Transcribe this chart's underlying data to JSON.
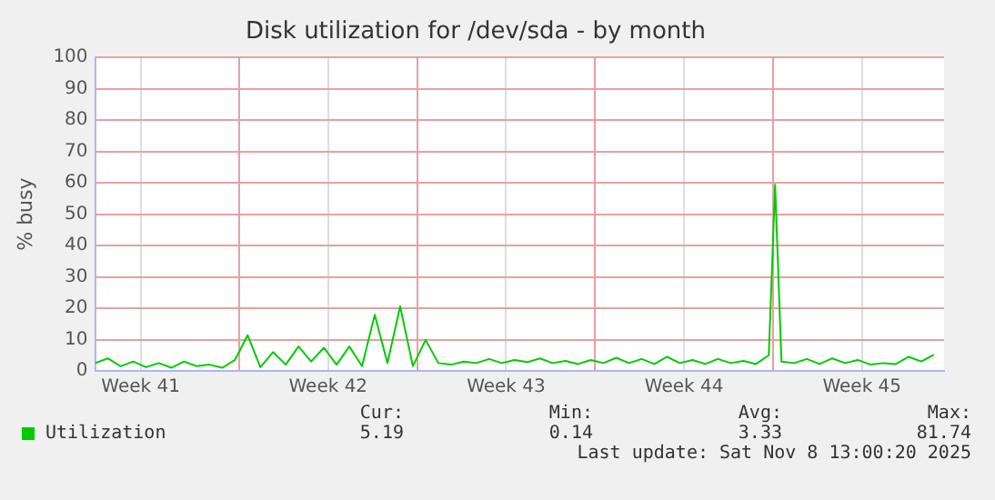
{
  "chart_data": {
    "type": "line",
    "title": "Disk utilization for /dev/sda - by month",
    "ylabel": "% busy",
    "x": [
      "2025-10-07T08:00",
      "2025-10-07T20:00",
      "2025-10-08T08:00",
      "2025-10-08T20:00",
      "2025-10-09T08:00",
      "2025-10-09T20:00",
      "2025-10-10T08:00",
      "2025-10-10T20:00",
      "2025-10-11T08:00",
      "2025-10-11T20:00",
      "2025-10-12T08:00",
      "2025-10-12T20:00",
      "2025-10-13T08:00",
      "2025-10-13T20:00",
      "2025-10-14T08:00",
      "2025-10-14T20:00",
      "2025-10-15T08:00",
      "2025-10-15T20:00",
      "2025-10-16T08:00",
      "2025-10-16T20:00",
      "2025-10-17T08:00",
      "2025-10-17T20:00",
      "2025-10-18T08:00",
      "2025-10-18T20:00",
      "2025-10-19T08:00",
      "2025-10-19T20:00",
      "2025-10-20T08:00",
      "2025-10-20T20:00",
      "2025-10-21T08:00",
      "2025-10-21T20:00",
      "2025-10-22T08:00",
      "2025-10-22T20:00",
      "2025-10-23T08:00",
      "2025-10-23T20:00",
      "2025-10-24T08:00",
      "2025-10-24T20:00",
      "2025-10-25T08:00",
      "2025-10-25T20:00",
      "2025-10-26T08:00",
      "2025-10-26T20:00",
      "2025-10-27T08:00",
      "2025-10-27T20:00",
      "2025-10-28T08:00",
      "2025-10-28T20:00",
      "2025-10-29T08:00",
      "2025-10-29T20:00",
      "2025-10-30T08:00",
      "2025-10-30T20:00",
      "2025-10-31T08:00",
      "2025-10-31T20:00",
      "2025-11-01T08:00",
      "2025-11-01T20:00",
      "2025-11-02T08:00",
      "2025-11-02T20:00",
      "2025-11-03T02:00",
      "2025-11-03T08:00",
      "2025-11-03T20:00",
      "2025-11-04T08:00",
      "2025-11-04T20:00",
      "2025-11-05T08:00",
      "2025-11-05T20:00",
      "2025-11-06T08:00",
      "2025-11-06T20:00",
      "2025-11-07T08:00",
      "2025-11-07T20:00",
      "2025-11-08T08:00",
      "2025-11-08T20:00",
      "2025-11-09T08:00"
    ],
    "series": [
      {
        "name": "Utilization",
        "color": "#00cc00",
        "values": [
          2.5,
          4,
          1.5,
          3,
          1.2,
          2.5,
          1,
          3,
          1.5,
          2,
          1,
          3.5,
          11.4,
          1.2,
          6,
          2,
          7.8,
          3,
          7.4,
          2,
          7.8,
          1.5,
          17.9,
          2.5,
          20.6,
          1.5,
          9.9,
          2.5,
          2,
          3,
          2.5,
          3.8,
          2.5,
          3.5,
          2.8,
          4,
          2.5,
          3.2,
          2.2,
          3.5,
          2.5,
          4.2,
          2.5,
          3.8,
          2.2,
          4.5,
          2.5,
          3.5,
          2.2,
          3.8,
          2.5,
          3.2,
          2.2,
          5,
          59.4,
          3,
          2.5,
          3.8,
          2.2,
          4,
          2.5,
          3.5,
          2,
          2.5,
          2.2,
          4.5,
          3,
          5.2
        ]
      }
    ],
    "xlim": [
      "2025-10-07T08:00",
      "2025-11-09T17:30"
    ],
    "xticks": [
      {
        "value": "2025-10-09T03:00",
        "label": "Week 41"
      },
      {
        "value": "2025-10-13",
        "label": null
      },
      {
        "value": "2025-10-16T12:00",
        "label": "Week 42"
      },
      {
        "value": "2025-10-20",
        "label": null
      },
      {
        "value": "2025-10-23T12:00",
        "label": "Week 43"
      },
      {
        "value": "2025-10-27",
        "label": null
      },
      {
        "value": "2025-10-30T12:00",
        "label": "Week 44"
      },
      {
        "value": "2025-11-03",
        "label": null
      },
      {
        "value": "2025-11-06T12:00",
        "label": "Week 45"
      }
    ],
    "ylim": [
      0,
      100
    ],
    "yticks": [
      0,
      10,
      20,
      30,
      40,
      50,
      60,
      70,
      80,
      90,
      100
    ],
    "grid": true,
    "legend": "bottom",
    "marker": "none",
    "line_style": "solid",
    "annotations": [
      "Cur:",
      "Min:",
      "Avg:",
      "Max:",
      "5.19",
      "0.14",
      "3.33",
      "81.74",
      "Last update: Sat Nov  8 13:00:20 2025"
    ]
  }
}
